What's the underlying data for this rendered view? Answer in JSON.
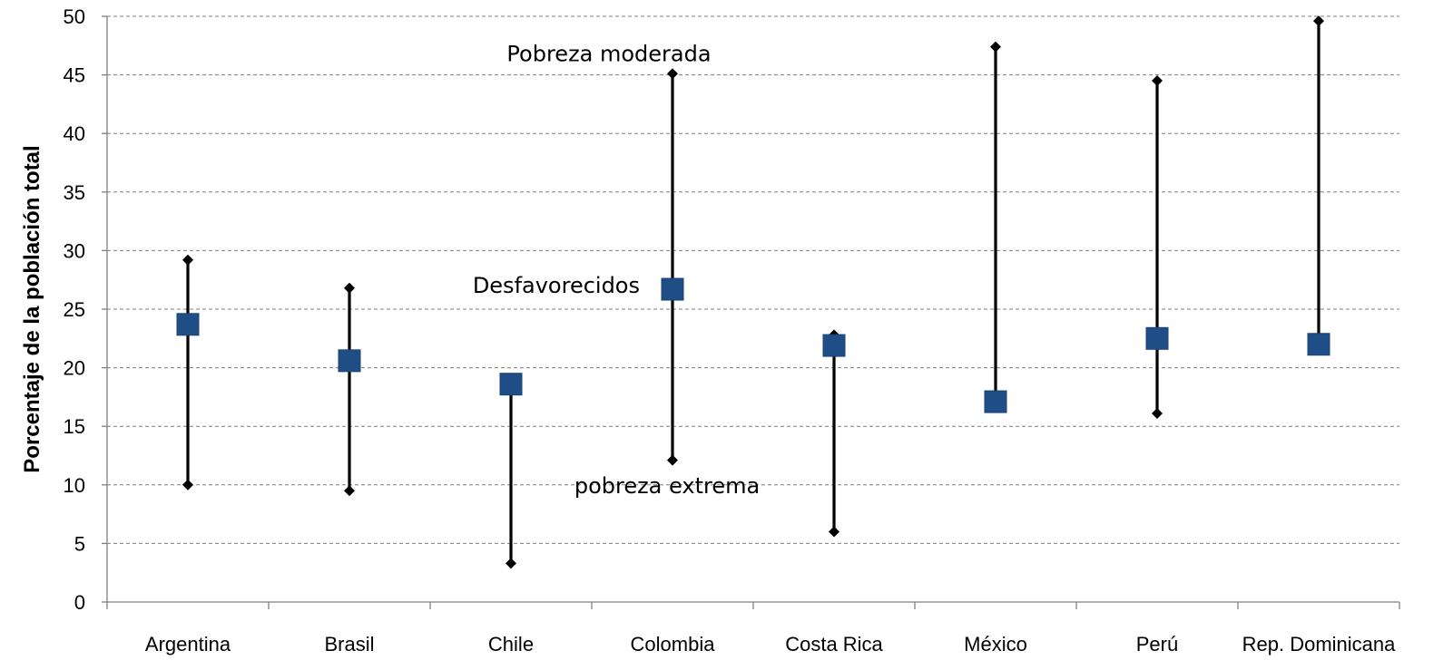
{
  "chart_data": {
    "type": "scatter",
    "categories": [
      "Argentina",
      "Brasil",
      "Chile",
      "Colombia",
      "Costa Rica",
      "México",
      "Perú",
      "Rep. Dominicana"
    ],
    "ylabel": "Porcentaje de la población total",
    "ylim": [
      0,
      50
    ],
    "yticks": [
      0,
      5,
      10,
      15,
      20,
      25,
      30,
      35,
      40,
      45,
      50
    ],
    "grid": true,
    "series": [
      {
        "name": "Pobreza moderada",
        "marker": "diamond",
        "values": [
          29.2,
          26.8,
          null,
          45.1,
          22.8,
          47.4,
          44.5,
          49.6
        ]
      },
      {
        "name": "Desfavorecidos",
        "marker": "square",
        "values": [
          23.7,
          20.6,
          18.6,
          26.7,
          21.9,
          17.1,
          22.5,
          22.0
        ]
      },
      {
        "name": "pobreza extrema",
        "marker": "diamond",
        "values": [
          10.0,
          9.5,
          3.3,
          12.1,
          6.0,
          null,
          16.1,
          null
        ]
      }
    ],
    "annotations": [
      {
        "text": "Pobreza moderada",
        "near": "Colombia",
        "value": 46.8
      },
      {
        "text": "Desfavorecidos",
        "near": "Colombia",
        "value": 27.0
      },
      {
        "text": "pobreza extrema",
        "near": "Colombia",
        "value": 9.9
      }
    ],
    "colors": {
      "marker": "#1f4e86",
      "range_line": "#000000",
      "grid": "#7f7f7f"
    }
  }
}
